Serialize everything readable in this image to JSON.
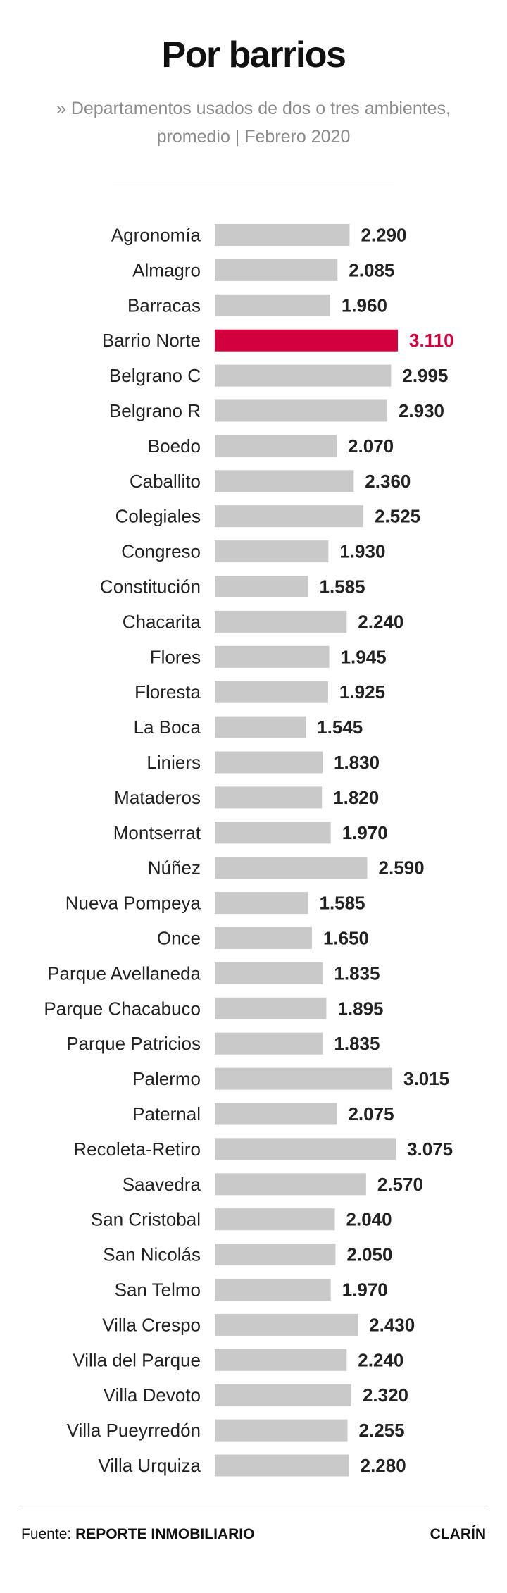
{
  "header": {
    "title": "Por barrios",
    "subtitle_line1": "» Departamentos usados de dos o tres ambientes,",
    "subtitle_line2": "promedio | Febrero 2020"
  },
  "footer": {
    "source_prefix": "Fuente:",
    "source_name": "REPORTE INMOBILIARIO",
    "brand": "CLARÍN"
  },
  "colors": {
    "bar": "#c9c9c9",
    "highlight": "#d2003c"
  },
  "chart_data": {
    "type": "bar",
    "orientation": "horizontal",
    "highlight": "Barrio Norte",
    "categories": [
      "Agronomía",
      "Almagro",
      "Barracas",
      "Barrio Norte",
      "Belgrano C",
      "Belgrano R",
      "Boedo",
      "Caballito",
      "Colegiales",
      "Congreso",
      "Constitución",
      "Chacarita",
      "Flores",
      "Floresta",
      "La Boca",
      "Liniers",
      "Mataderos",
      "Montserrat",
      "Núñez",
      "Nueva Pompeya",
      "Once",
      "Parque Avellaneda",
      "Parque Chacabuco",
      "Parque Patricios",
      "Palermo",
      "Paternal",
      "Recoleta-Retiro",
      "Saavedra",
      "San Cristobal",
      "San Nicolás",
      "San Telmo",
      "Villa Crespo",
      "Villa del Parque",
      "Villa Devoto",
      "Villa Pueyrredón",
      "Villa Urquiza"
    ],
    "values": [
      2290,
      2085,
      1960,
      3110,
      2995,
      2930,
      2070,
      2360,
      2525,
      1930,
      1585,
      2240,
      1945,
      1925,
      1545,
      1830,
      1820,
      1970,
      2590,
      1585,
      1650,
      1835,
      1895,
      1835,
      3015,
      2075,
      3075,
      2570,
      2040,
      2050,
      1970,
      2430,
      2240,
      2320,
      2255,
      2280
    ],
    "value_labels": [
      "2.290",
      "2.085",
      "1.960",
      "3.110",
      "2.995",
      "2.930",
      "2.070",
      "2.360",
      "2.525",
      "1.930",
      "1.585",
      "2.240",
      "1.945",
      "1.925",
      "1.545",
      "1.830",
      "1.820",
      "1.970",
      "2.590",
      "1.585",
      "1.650",
      "1.835",
      "1.895",
      "1.835",
      "3.015",
      "2.075",
      "3.075",
      "2.570",
      "2.040",
      "2.050",
      "1.970",
      "2.430",
      "2.240",
      "2.320",
      "2.255",
      "2.280"
    ],
    "xlim": [
      0,
      3110
    ]
  }
}
